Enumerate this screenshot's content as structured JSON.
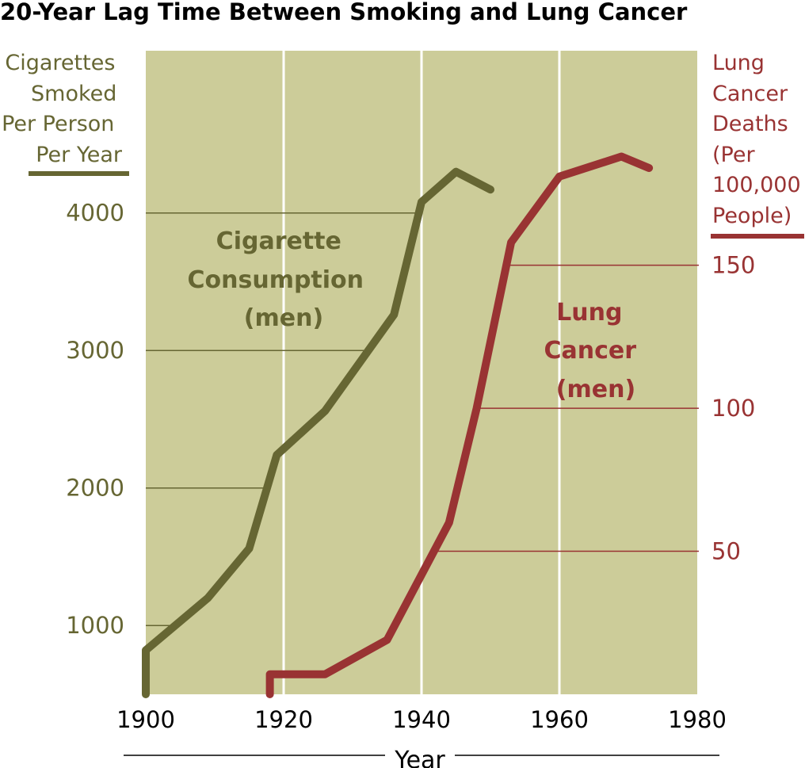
{
  "colors": {
    "plot_background": "#cccc99",
    "cigarette": "#666633",
    "lung_cancer": "#993333",
    "vertical_grid": "#ffffff"
  },
  "chart_data": {
    "type": "line",
    "title": "20-Year Lag Time Between Smoking and Lung Cancer",
    "xlabel": "Year",
    "x_ticks": [
      "1900",
      "1920",
      "1940",
      "1960",
      "1980"
    ],
    "xlim": [
      1900,
      1980
    ],
    "left_axis": {
      "label_lines": [
        "Cigarettes",
        "Smoked",
        "Per Person",
        "Per Year"
      ],
      "ticks": [
        "1000",
        "2000",
        "3000",
        "4000"
      ],
      "ylim": [
        500,
        5180
      ]
    },
    "right_axis": {
      "label_lines": [
        "Lung",
        "Cancer",
        "Deaths",
        "(Per",
        "100,000",
        "People)"
      ],
      "ticks": [
        "50",
        "100",
        "150"
      ],
      "ylim": [
        0,
        225
      ]
    },
    "grid": "vertical lines at x ticks; horizontal reference lines to each series",
    "series": [
      {
        "axis": "left",
        "annotation_lines": [
          "Cigarette",
          "Consumption",
          "(men)"
        ],
        "points": [
          [
            1900,
            500
          ],
          [
            1900,
            820
          ],
          [
            1909,
            1200
          ],
          [
            1915,
            1560
          ],
          [
            1919,
            2240
          ],
          [
            1926,
            2560
          ],
          [
            1936,
            3260
          ],
          [
            1940,
            4080
          ],
          [
            1945,
            4300
          ],
          [
            1950,
            4170
          ]
        ]
      },
      {
        "axis": "right",
        "annotation_lines": [
          "Lung",
          "Cancer",
          "(men)"
        ],
        "points": [
          [
            1918,
            0
          ],
          [
            1918,
            7
          ],
          [
            1926,
            7
          ],
          [
            1935,
            19
          ],
          [
            1944,
            60
          ],
          [
            1948,
            100
          ],
          [
            1953,
            158
          ],
          [
            1960,
            181
          ],
          [
            1969,
            188
          ],
          [
            1973,
            184
          ]
        ]
      }
    ]
  }
}
